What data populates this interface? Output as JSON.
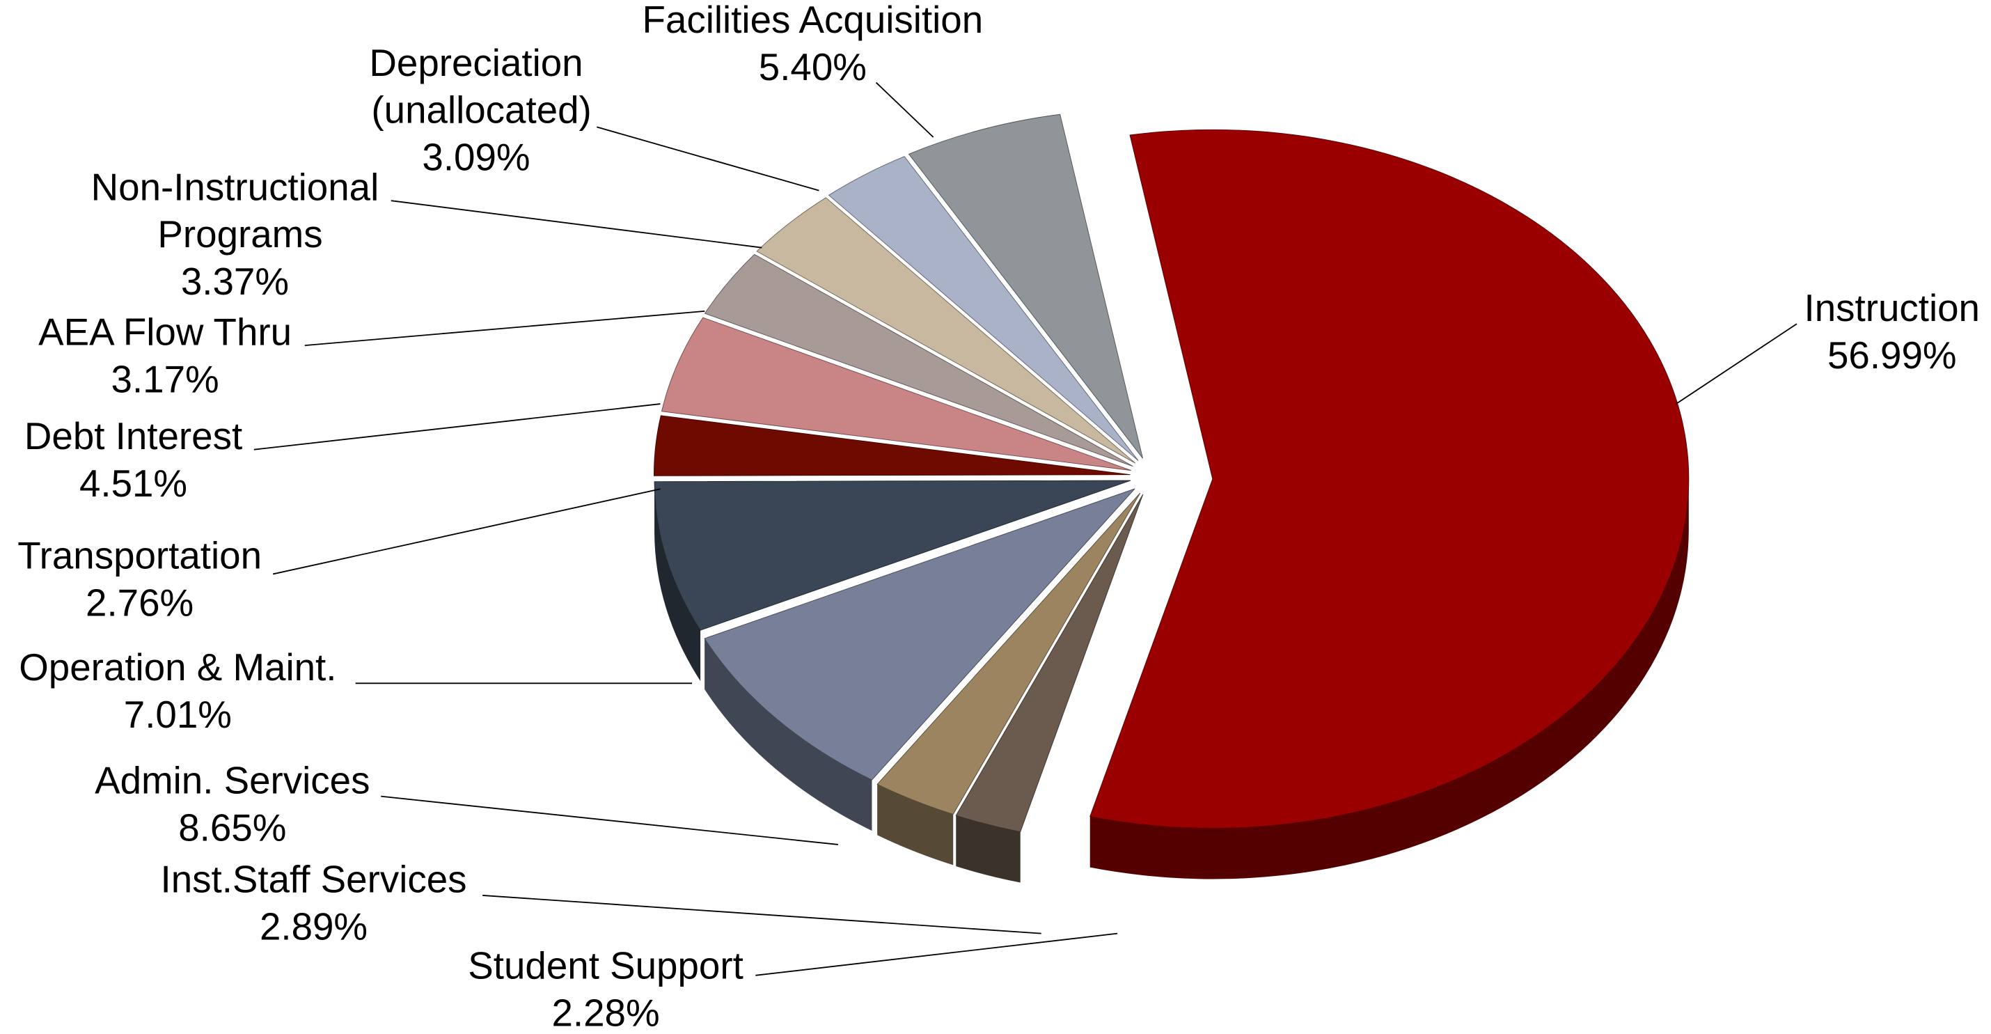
{
  "chart_data": {
    "type": "pie",
    "categories": [
      "Instruction",
      "Student Support",
      "Inst.Staff Services",
      "Admin. Services",
      "Operation & Maint.",
      "Transportation",
      "Debt Interest",
      "AEA Flow Thru",
      "Non-Instructional Programs",
      "Depreciation (unallocated)",
      "Facilities Acquisition"
    ],
    "values": [
      56.99,
      2.28,
      2.89,
      8.65,
      7.01,
      2.76,
      4.51,
      3.17,
      3.37,
      3.09,
      5.4
    ],
    "value_labels": [
      "56.99%",
      "2.28%",
      "2.89%",
      "8.65%",
      "7.01%",
      "2.76%",
      "4.51%",
      "3.17%",
      "3.37%",
      "3.09%",
      "5.40%"
    ],
    "colors": [
      "#9b0000",
      "#6b5a4e",
      "#9c8460",
      "#777f99",
      "#3a4656",
      "#6e0a00",
      "#c98585",
      "#a89a96",
      "#c8b8a0",
      "#aab2c8",
      "#8f9598"
    ]
  }
}
